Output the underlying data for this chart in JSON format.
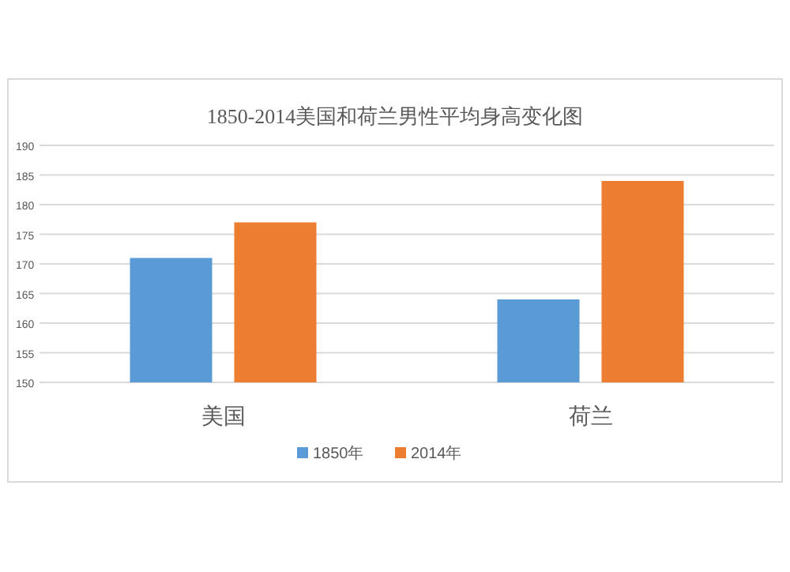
{
  "chart_data": {
    "type": "bar",
    "title": "1850-2014美国和荷兰男性平均身高变化图",
    "categories": [
      "美国",
      "荷兰"
    ],
    "series": [
      {
        "name": "1850年",
        "color": "#5b9bd5",
        "values": [
          171,
          164
        ]
      },
      {
        "name": "2014年",
        "color": "#ed7d31",
        "values": [
          177,
          184
        ]
      }
    ],
    "ylim": [
      150,
      190
    ],
    "yticks": [
      150,
      155,
      160,
      165,
      170,
      175,
      180,
      185,
      190
    ],
    "grid": "y",
    "legend": "bottom"
  }
}
